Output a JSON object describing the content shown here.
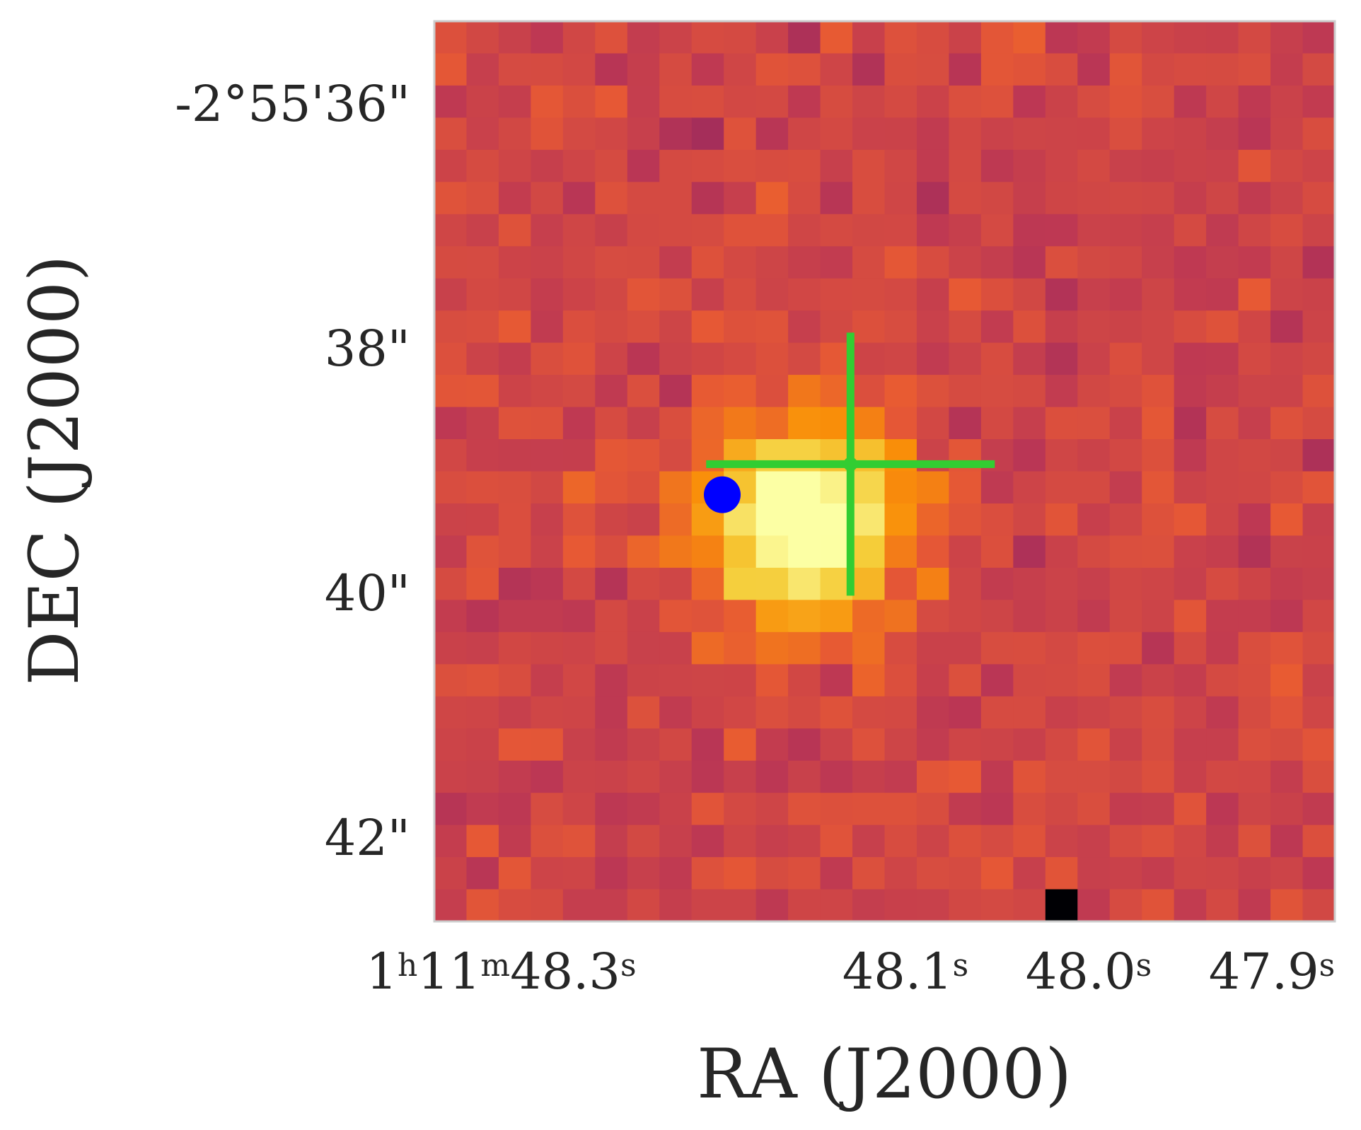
{
  "chart_data": {
    "type": "heatmap",
    "title": "",
    "xlabel": "RA (J2000)",
    "ylabel": "DEC (J2000)",
    "grid": false,
    "colormap": "inferno",
    "pixel_grid": {
      "columns": 28,
      "rows": 28
    },
    "x_ticks": [
      {
        "value_s": 48.3,
        "parts": [
          {
            "t": "1"
          },
          {
            "t": "h",
            "sup": true
          },
          {
            "t": "11"
          },
          {
            "t": "m",
            "sup": true
          },
          {
            "t": "48.3"
          },
          {
            "t": "s",
            "sup": true
          }
        ]
      },
      {
        "value_s": 48.1,
        "parts": [
          {
            "t": "48.1"
          },
          {
            "t": "s",
            "sup": true
          }
        ]
      },
      {
        "value_s": 48.0,
        "parts": [
          {
            "t": "48.0"
          },
          {
            "t": "s",
            "sup": true
          }
        ]
      },
      {
        "value_s": 47.9,
        "parts": [
          {
            "t": "47.9"
          },
          {
            "t": "s",
            "sup": true
          }
        ]
      }
    ],
    "y_ticks": [
      {
        "value_arcsec": 36,
        "label": "-2°55'36\""
      },
      {
        "value_arcsec": 38,
        "label": "38\""
      },
      {
        "value_arcsec": 40,
        "label": "40\""
      },
      {
        "value_arcsec": 42,
        "label": "42\""
      }
    ],
    "markers": [
      {
        "kind": "crosshair",
        "color": "#32cd32",
        "ra_s": 48.13,
        "dec_arcsec": 38.95
      },
      {
        "kind": "dot",
        "color": "#0000ff",
        "ra_s": 48.2,
        "dec_arcsec": 39.2
      }
    ],
    "source_peak": {
      "col": 11,
      "row": 15,
      "amplitude": 0.62
    },
    "cold_pixel": {
      "col": 19,
      "row": 27
    },
    "colors": {
      "axes_frame": "#cccccc",
      "text": "#262626"
    }
  }
}
